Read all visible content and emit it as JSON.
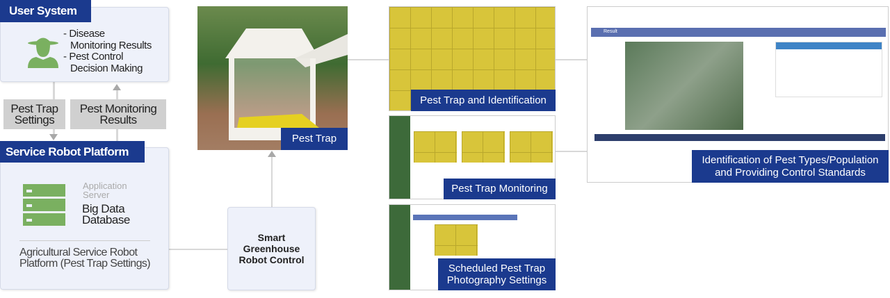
{
  "user_system": {
    "title": "User System",
    "items": [
      "- Disease",
      "Monitoring Results",
      "- Pest Control",
      "Decision Making"
    ]
  },
  "flow_labels": {
    "pest_trap_settings": "Pest Trap Settings",
    "pest_monitoring_results": "Pest Monitoring Results"
  },
  "service_platform": {
    "title": "Service Robot Platform",
    "app_server": "Application Server",
    "database": "Big Data Database",
    "footer": "Agricultural Service Robot Platform (Pest Trap Settings)"
  },
  "control": {
    "label": "Smart Greenhouse Robot Control"
  },
  "photo": {
    "label": "Pest Trap"
  },
  "screens": [
    {
      "label": "Pest Trap and Identification"
    },
    {
      "label": "Pest Trap Monitoring"
    },
    {
      "label": "Scheduled Pest Trap Photography Settings"
    },
    {
      "label": "Identification of Pest Types/Population and Providing Control Standards",
      "panel_title": "Result"
    }
  ],
  "colors": {
    "brand_blue": "#1b3a8e",
    "icon_green": "#7ab060",
    "panel_bg": "#eef1fa"
  }
}
